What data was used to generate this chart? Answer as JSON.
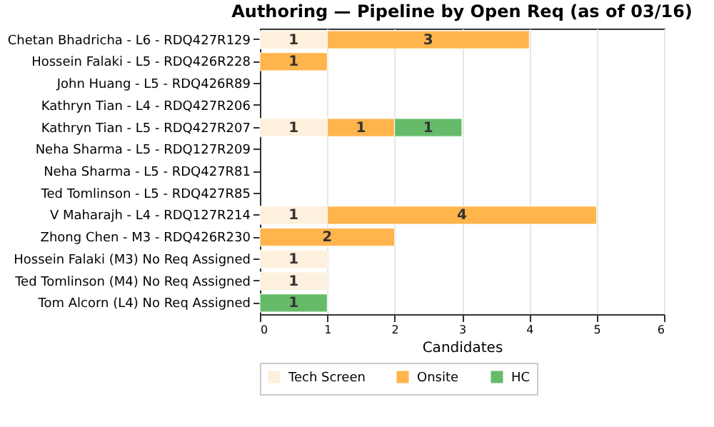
{
  "chart_data": {
    "type": "bar",
    "orientation": "horizontal",
    "stacked": true,
    "title": "Authoring — Pipeline by Open Req (as of 03/16)",
    "xlabel": "Candidates",
    "categories": [
      "Chetan Bhadricha - L6 - RDQ427R129",
      "Hossein Falaki - L5 - RDQ426R228",
      "John Huang - L5 - RDQ426R89",
      "Kathryn Tian - L4 - RDQ427R206",
      "Kathryn Tian - L5 - RDQ427R207",
      "Neha Sharma - L5 - RDQ127R209",
      "Neha Sharma - L5 - RDQ427R81",
      "Ted Tomlinson - L5 - RDQ427R85",
      "V Maharajh - L4 - RDQ127R214",
      "Zhong Chen - M3 - RDQ426R230",
      "Hossein Falaki (M3) No Req Assigned",
      "Ted Tomlinson (M4) No Req Assigned",
      "Tom Alcorn (L4) No Req Assigned"
    ],
    "series": [
      {
        "name": "Tech Screen",
        "color": "#fdf0dc",
        "values": [
          1,
          null,
          null,
          null,
          1,
          null,
          null,
          null,
          1,
          null,
          1,
          1,
          null
        ]
      },
      {
        "name": "Onsite",
        "color": "#ffb44c",
        "values": [
          3,
          1,
          null,
          null,
          1,
          null,
          null,
          null,
          4,
          2,
          null,
          null,
          null
        ]
      },
      {
        "name": "HC",
        "color": "#66bb6a",
        "values": [
          null,
          null,
          null,
          null,
          1,
          null,
          null,
          null,
          null,
          null,
          null,
          null,
          1
        ]
      }
    ],
    "xlim": [
      0,
      6
    ],
    "xticks": [
      0,
      1,
      2,
      3,
      4,
      5,
      6
    ],
    "grid": "x",
    "legend": "bottom",
    "data_labels": true
  }
}
